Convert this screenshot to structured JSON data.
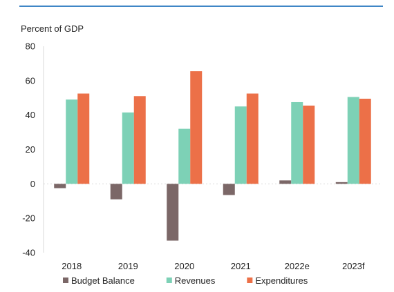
{
  "chart_data": {
    "type": "bar",
    "title": "",
    "ylabel": "Percent of GDP",
    "xlabel": "",
    "categories": [
      "2018",
      "2019",
      "2020",
      "2021",
      "2022e",
      "2023f"
    ],
    "series": [
      {
        "name": "Budget Balance",
        "color": "#7b6767",
        "values": [
          -2.5,
          -9,
          -33,
          -6.5,
          2,
          1
        ]
      },
      {
        "name": "Revenues",
        "color": "#7dd1b6",
        "values": [
          49,
          41.5,
          32,
          45,
          47.5,
          50.5
        ]
      },
      {
        "name": "Expenditures",
        "color": "#ec7048",
        "values": [
          52.5,
          51,
          65.5,
          52.5,
          45.5,
          49.5
        ]
      }
    ],
    "ylim": [
      -40,
      80
    ],
    "yticks": [
      80,
      60,
      40,
      20,
      0,
      -20,
      -40
    ],
    "grid": false,
    "legend_position": "bottom"
  },
  "colors": {
    "accent_rule": "#3f86c6",
    "axis": "#d9d9d9"
  }
}
